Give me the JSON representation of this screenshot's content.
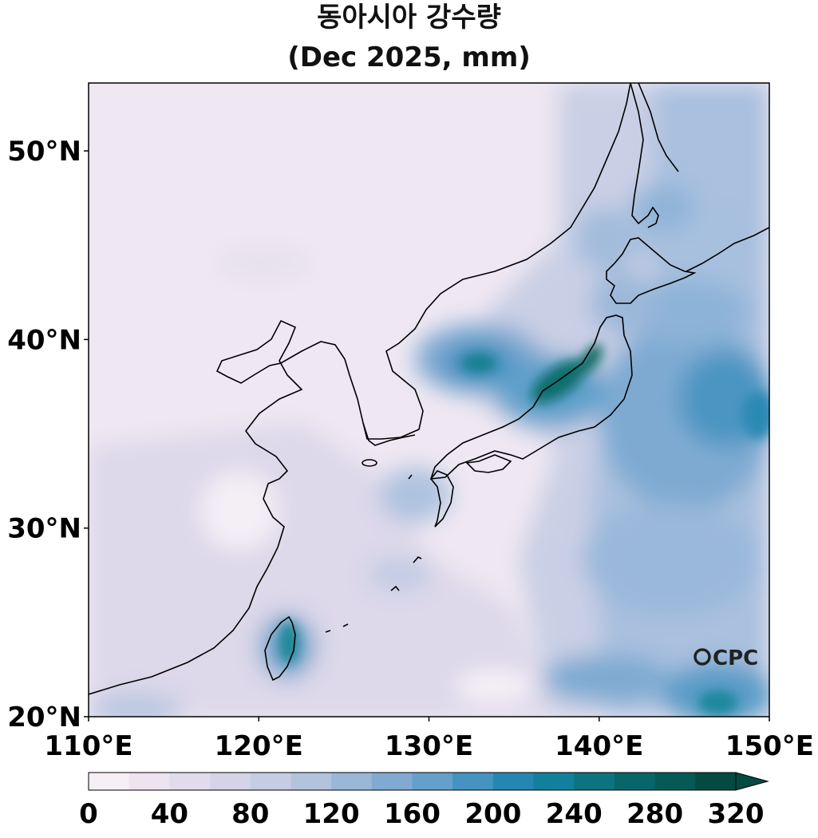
{
  "title": {
    "line1": "동아시아 강수량",
    "line2": "(Dec 2025, mm)"
  },
  "map": {
    "lon_range": [
      110,
      150
    ],
    "lat_range": [
      20,
      53.6
    ],
    "lon_ticks": [
      "110°E",
      "120°E",
      "130°E",
      "140°E",
      "150°E"
    ],
    "lat_ticks": [
      "20°N",
      "30°N",
      "40°N",
      "50°N"
    ],
    "logo_text": "CPC"
  },
  "colorbar": {
    "labels": [
      "0",
      "40",
      "80",
      "120",
      "160",
      "200",
      "240",
      "280",
      "320"
    ],
    "colors": [
      "#f7eff6",
      "#ede4f0",
      "#e2dbeb",
      "#d5d3e7",
      "#c6cce3",
      "#b2c3de",
      "#9ab7d8",
      "#80aad1",
      "#64a0cb",
      "#4493c0",
      "#2686b2",
      "#12809c",
      "#0b7480",
      "#07666a",
      "#045a55",
      "#034a41"
    ],
    "extend": "max"
  }
}
